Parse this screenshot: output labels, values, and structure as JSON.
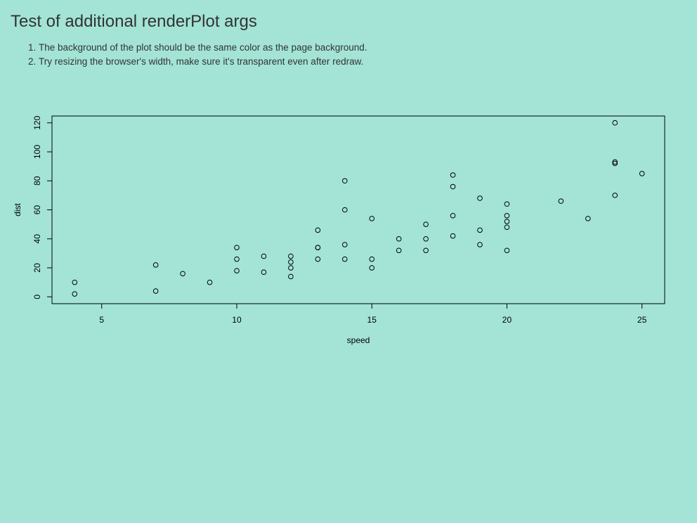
{
  "page": {
    "title": "Test of additional renderPlot args",
    "instructions": [
      "The background of the plot should be the same color as the page background.",
      "Try resizing the browser's width, make sure it's transparent even after redraw."
    ],
    "background_color": "#a3e4d7"
  },
  "chart_data": {
    "type": "scatter",
    "title": "",
    "xlabel": "speed",
    "ylabel": "dist",
    "xlim": [
      3.16,
      25.84
    ],
    "ylim": [
      -4.72,
      124.72
    ],
    "xticks": [
      5,
      10,
      15,
      20,
      25
    ],
    "yticks": [
      0,
      20,
      40,
      60,
      80,
      100,
      120
    ],
    "grid": false,
    "point_style": "open-circle",
    "x": [
      4,
      4,
      7,
      7,
      8,
      9,
      10,
      10,
      10,
      11,
      11,
      12,
      12,
      12,
      12,
      13,
      13,
      13,
      13,
      14,
      14,
      14,
      14,
      15,
      15,
      15,
      16,
      16,
      17,
      17,
      17,
      18,
      18,
      18,
      18,
      19,
      19,
      19,
      20,
      20,
      20,
      20,
      20,
      22,
      23,
      24,
      24,
      24,
      24,
      25
    ],
    "y": [
      2,
      10,
      4,
      22,
      16,
      10,
      18,
      26,
      34,
      17,
      28,
      14,
      20,
      24,
      28,
      26,
      34,
      34,
      46,
      26,
      36,
      60,
      80,
      20,
      26,
      54,
      32,
      40,
      32,
      40,
      50,
      42,
      56,
      76,
      84,
      36,
      46,
      68,
      32,
      48,
      52,
      56,
      64,
      66,
      54,
      70,
      92,
      93,
      120,
      85
    ]
  }
}
